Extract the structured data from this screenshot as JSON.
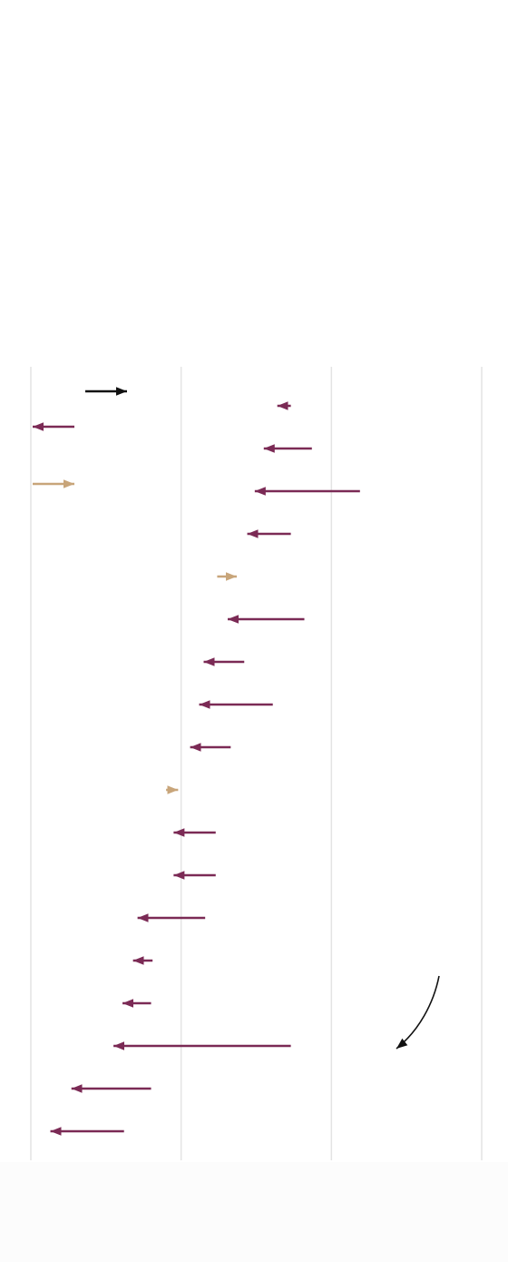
{
  "chart_data": {
    "type": "arrow",
    "start": [
      1.73,
      1.87,
      2.19,
      1.73,
      1.24,
      1.82,
      1.42,
      1.61,
      1.33,
      0.9,
      1.23,
      1.23,
      1.16,
      0.81,
      0.8,
      1.73,
      0.8,
      0.62
    ],
    "end": [
      1.64,
      1.55,
      1.49,
      1.44,
      1.37,
      1.31,
      1.15,
      1.12,
      1.06,
      0.98,
      0.95,
      0.95,
      0.71,
      0.68,
      0.61,
      0.55,
      0.27,
      0.13
    ],
    "colors": [
      "#7b2a55",
      "#7b2a55",
      "#7b2a55",
      "#7b2a55",
      "#c8a57a",
      "#7b2a55",
      "#7b2a55",
      "#7b2a55",
      "#7b2a55",
      "#c8a57a",
      "#7b2a55",
      "#7b2a55",
      "#7b2a55",
      "#7b2a55",
      "#7b2a55",
      "#7b2a55",
      "#7b2a55",
      "#7b2a55"
    ],
    "xlim": [
      0,
      3
    ],
    "xticks": [
      0,
      1,
      2,
      3
    ],
    "grid": true
  }
}
